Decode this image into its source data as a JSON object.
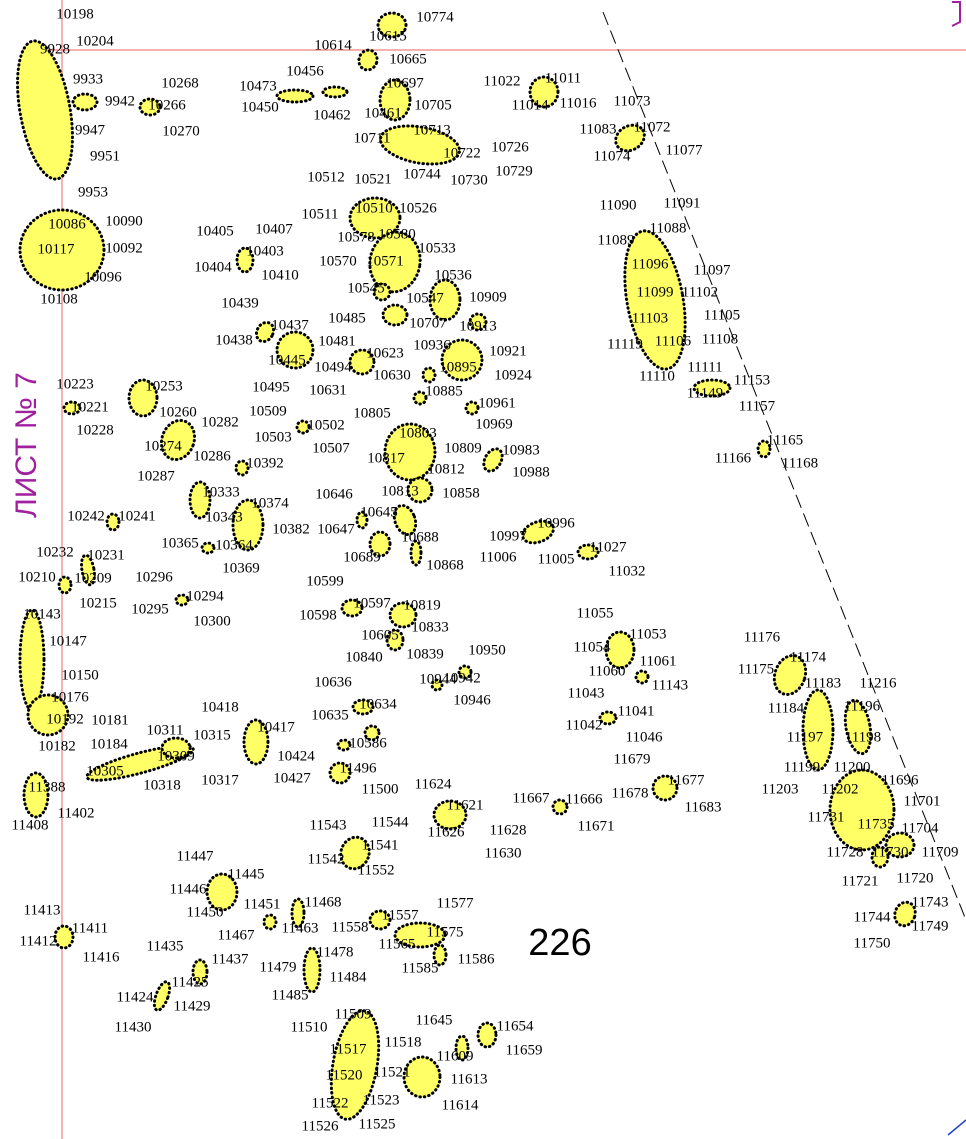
{
  "sheet_label": "ЛИСТ № 7",
  "block_number": "226",
  "labels": [
    "10198",
    "10774",
    "10614",
    "10615",
    "10665",
    "10204",
    "9928",
    "9933",
    "10268",
    "10456",
    "10473",
    "10450",
    "10697",
    "10705",
    "10462",
    "10461",
    "11022",
    "11011",
    "11014",
    "11016",
    "11073",
    "9942",
    "10266",
    "10270",
    "9947",
    "9951",
    "9953",
    "10713",
    "10711",
    "10722",
    "10726",
    "10729",
    "10730",
    "10744",
    "10521",
    "10512",
    "11083",
    "11072",
    "11074",
    "11077",
    "10090",
    "10086",
    "10092",
    "10117",
    "10096",
    "10108",
    "11090",
    "11091",
    "11088",
    "11089",
    "10510",
    "10526",
    "10511",
    "10578",
    "10580",
    "10533",
    "10405",
    "10407",
    "10403",
    "10404",
    "10410",
    "10570",
    "10571",
    "10536",
    "11096",
    "11097",
    "11099",
    "11102",
    "10545",
    "10547",
    "10909",
    "10439",
    "10485",
    "10707",
    "10913",
    "11105",
    "11103",
    "10437",
    "10438",
    "10481",
    "10936",
    "10921",
    "11108",
    "11119",
    "11106",
    "10623",
    "10445",
    "10494",
    "10895",
    "10924",
    "10630",
    "11111",
    "11110",
    "11153",
    "10223",
    "10253",
    "10495",
    "10631",
    "10885",
    "11149",
    "10221",
    "10961",
    "10509",
    "10805",
    "11157",
    "10260",
    "10282",
    "10502",
    "10969",
    "10228",
    "10503",
    "10803",
    "10507",
    "10809",
    "10983",
    "11165",
    "10274",
    "10286",
    "10817",
    "11166",
    "11168",
    "10392",
    "10812",
    "10988",
    "10287",
    "10813",
    "10858",
    "10646",
    "10333",
    "10374",
    "10343",
    "10645",
    "10241",
    "10242",
    "10996",
    "10647",
    "10382",
    "10997",
    "10688",
    "11027",
    "10365",
    "10364",
    "10232",
    "10231",
    "10689",
    "11006",
    "11005",
    "10868",
    "10369",
    "11032",
    "10210",
    "10209",
    "10296",
    "10599",
    "10294",
    "10215",
    "10295",
    "10597",
    "10819",
    "10598",
    "10300",
    "11055",
    "10143",
    "10833",
    "10605",
    "11053",
    "10147",
    "11176",
    "11054",
    "10840",
    "10839",
    "10950",
    "11174",
    "11061",
    "11060",
    "11175",
    "10150",
    "10944",
    "10942",
    "10636",
    "11143",
    "11183",
    "11216",
    "10176",
    "11043",
    "10946",
    "10634",
    "10418",
    "11196",
    "11184",
    "11041",
    "10181",
    "10192",
    "10635",
    "10417",
    "10311",
    "10315",
    "11042",
    "11046",
    "11197",
    "11198",
    "10184",
    "10182",
    "10586",
    "10424",
    "11679",
    "10309",
    "11199",
    "11200",
    "10305",
    "11496",
    "10427",
    "10317",
    "11696",
    "10318",
    "11677",
    "11624",
    "11203",
    "11202",
    "11500",
    "11388",
    "11678",
    "11667",
    "11666",
    "11701",
    "11621",
    "11683",
    "11402",
    "11731",
    "11543",
    "11544",
    "11408",
    "11626",
    "11628",
    "11671",
    "11735",
    "11704",
    "11541",
    "11630",
    "11728",
    "11730",
    "11709",
    "11447",
    "11542",
    "11552",
    "11445",
    "11721",
    "11720",
    "11446",
    "11468",
    "11451",
    "11577",
    "11743",
    "11450",
    "11557",
    "11413",
    "11558",
    "11575",
    "11411",
    "11463",
    "11467",
    "11744",
    "11749",
    "11565",
    "11435",
    "11412",
    "11478",
    "11750",
    "11416",
    "11437",
    "11586",
    "11479",
    "11585",
    "11425",
    "11484",
    "11485",
    "11424",
    "11429",
    "11509",
    "11645",
    "11654",
    "11510",
    "11430",
    "11518",
    "11517",
    "11659",
    "11609",
    "11521",
    "11520",
    "11613",
    "11523",
    "11522",
    "11614",
    "11526",
    "11525"
  ]
}
